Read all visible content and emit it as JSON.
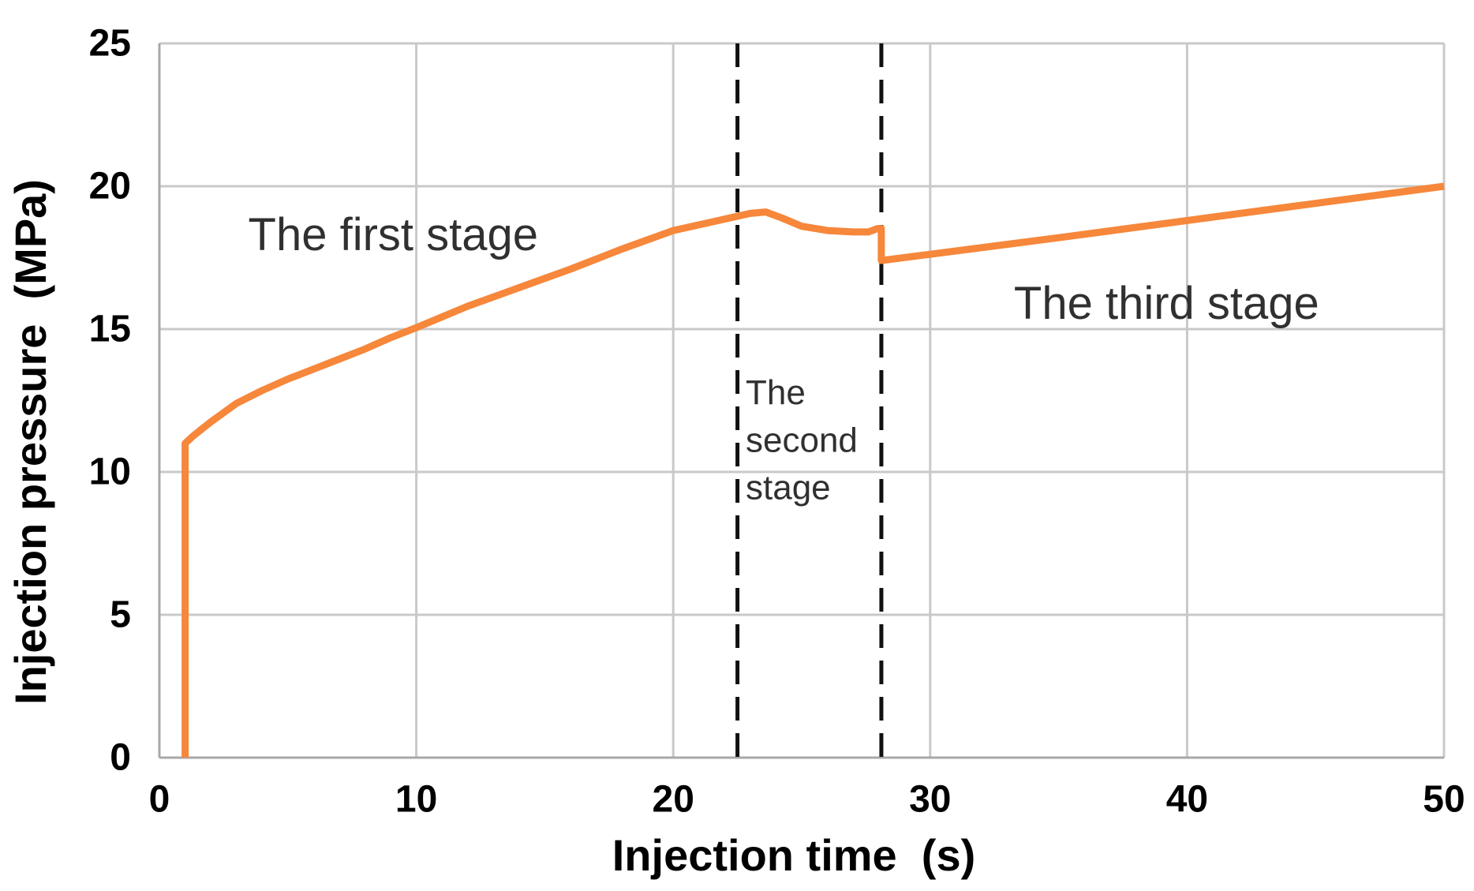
{
  "chart_data": {
    "type": "line",
    "title": "",
    "xlabel": "Injection time  (s)",
    "ylabel": "Injection pressure  (MPa)",
    "xlim": [
      0,
      50
    ],
    "ylim": [
      0,
      25
    ],
    "x_ticks": [
      0,
      10,
      20,
      30,
      40,
      50
    ],
    "y_ticks": [
      0,
      5,
      10,
      15,
      20,
      25
    ],
    "grid": true,
    "legend": "none",
    "series": [
      {
        "name": "Injection pressure",
        "color": "#F6873B",
        "points": [
          [
            1,
            0
          ],
          [
            1,
            11
          ],
          [
            1.3,
            11.25
          ],
          [
            2,
            11.75
          ],
          [
            3,
            12.4
          ],
          [
            4,
            12.85
          ],
          [
            5,
            13.25
          ],
          [
            6,
            13.6
          ],
          [
            7,
            13.95
          ],
          [
            8,
            14.3
          ],
          [
            9,
            14.7
          ],
          [
            10,
            15.05
          ],
          [
            12,
            15.8
          ],
          [
            14,
            16.45
          ],
          [
            16,
            17.1
          ],
          [
            18,
            17.8
          ],
          [
            20,
            18.45
          ],
          [
            21,
            18.65
          ],
          [
            22,
            18.85
          ],
          [
            23,
            19.05
          ],
          [
            23.6,
            19.1
          ],
          [
            24.2,
            18.9
          ],
          [
            25,
            18.6
          ],
          [
            26,
            18.45
          ],
          [
            27,
            18.4
          ],
          [
            27.6,
            18.4
          ],
          [
            27.95,
            18.52
          ],
          [
            28.1,
            18.52
          ],
          [
            28.1,
            17.4
          ],
          [
            30,
            17.62
          ],
          [
            35,
            18.2
          ],
          [
            40,
            18.8
          ],
          [
            45,
            19.4
          ],
          [
            50,
            20
          ]
        ]
      }
    ],
    "stage_divider_x": [
      22.5,
      28.1
    ],
    "annotations": [
      {
        "id": "first-stage",
        "lines": [
          "The first stage"
        ],
        "x": 9.1,
        "y": 18.3,
        "align": "middle",
        "size": "big"
      },
      {
        "id": "second-stage",
        "lines": [
          "The",
          "second",
          "stage"
        ],
        "x": 22.82,
        "y": 12.77,
        "line_step": 1.66,
        "align": "start",
        "size": "small"
      },
      {
        "id": "third-stage",
        "lines": [
          "The third stage"
        ],
        "x": 39.2,
        "y": 15.9,
        "align": "middle",
        "size": "big"
      }
    ],
    "colors": {
      "curve": "#F6873B",
      "gridline": "#C9C9C9",
      "axis_line": "#A8A8A8",
      "divider": "#111111",
      "tick_label": "#000000",
      "axis_title": "#000000",
      "annotation": "#303030",
      "background": "#FFFFFF"
    }
  }
}
